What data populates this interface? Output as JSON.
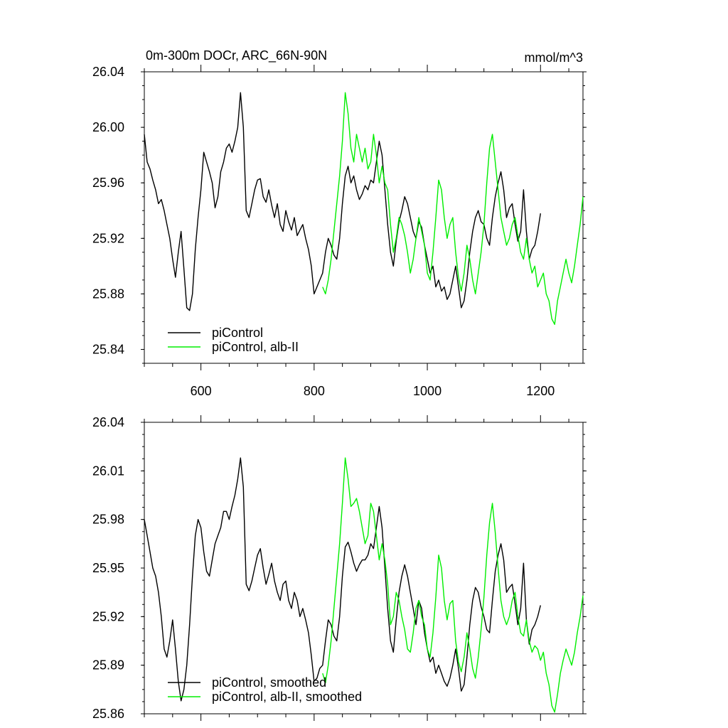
{
  "chart_data": [
    {
      "type": "line",
      "title": "0m-300m DOCr, ARC_66N-90N",
      "units": "mmol/m^3",
      "xlim": [
        500,
        1275
      ],
      "ylim": [
        25.83,
        26.04
      ],
      "yticks": [
        25.84,
        25.88,
        25.92,
        25.96,
        26.0,
        26.04
      ],
      "ytick_labels": [
        "25.84",
        "25.88",
        "25.92",
        "25.96",
        "26.00",
        "26.04"
      ],
      "xticks": [
        600,
        800,
        1000,
        1200
      ],
      "xtick_labels": [
        "600",
        "800",
        "1000",
        "1200"
      ],
      "legend_position": "bottom-left",
      "series": [
        {
          "name": "piControl",
          "color": "#000000",
          "x": [
            500,
            505,
            510,
            515,
            520,
            525,
            530,
            535,
            540,
            545,
            550,
            555,
            560,
            565,
            570,
            575,
            580,
            585,
            590,
            595,
            600,
            605,
            610,
            615,
            620,
            625,
            630,
            635,
            640,
            645,
            650,
            655,
            660,
            665,
            670,
            675,
            680,
            685,
            690,
            695,
            700,
            705,
            710,
            715,
            720,
            725,
            730,
            735,
            740,
            745,
            750,
            755,
            760,
            765,
            770,
            775,
            780,
            785,
            790,
            795,
            800,
            805,
            810,
            815,
            820,
            825,
            830,
            835,
            840,
            845,
            850,
            855,
            860,
            865,
            870,
            875,
            880,
            885,
            890,
            895,
            900,
            905,
            910,
            915,
            920,
            925,
            930,
            935,
            940,
            945,
            950,
            955,
            960,
            965,
            970,
            975,
            980,
            985,
            990,
            995,
            1000,
            1005,
            1010,
            1015,
            1020,
            1025,
            1030,
            1035,
            1040,
            1045,
            1050,
            1055,
            1060,
            1065,
            1070,
            1075,
            1080,
            1085,
            1090,
            1095,
            1100,
            1105,
            1110,
            1115,
            1120,
            1125,
            1130,
            1135,
            1140,
            1145,
            1150,
            1155,
            1160,
            1165,
            1170,
            1175,
            1180,
            1185,
            1190,
            1195,
            1200
          ],
          "values": [
            25.995,
            25.975,
            25.97,
            25.962,
            25.955,
            25.945,
            25.948,
            25.94,
            25.93,
            25.92,
            25.905,
            25.892,
            25.91,
            25.925,
            25.898,
            25.87,
            25.868,
            25.88,
            25.912,
            25.935,
            25.955,
            25.982,
            25.975,
            25.968,
            25.96,
            25.942,
            25.95,
            25.968,
            25.975,
            25.985,
            25.988,
            25.982,
            25.99,
            26.0,
            26.025,
            26.0,
            25.94,
            25.935,
            25.945,
            25.955,
            25.962,
            25.963,
            25.95,
            25.946,
            25.955,
            25.944,
            25.935,
            25.945,
            25.93,
            25.925,
            25.94,
            25.932,
            25.926,
            25.935,
            25.922,
            25.926,
            25.93,
            25.92,
            25.912,
            25.9,
            25.88,
            25.885,
            25.89,
            25.895,
            25.91,
            25.92,
            25.915,
            25.908,
            25.905,
            25.92,
            25.945,
            25.965,
            25.972,
            25.96,
            25.965,
            25.955,
            25.948,
            25.952,
            25.958,
            25.955,
            25.962,
            25.96,
            25.975,
            25.99,
            25.98,
            25.955,
            25.93,
            25.91,
            25.9,
            25.918,
            25.932,
            25.94,
            25.95,
            25.945,
            25.935,
            25.925,
            25.92,
            25.932,
            25.928,
            25.915,
            25.905,
            25.895,
            25.9,
            25.885,
            25.89,
            25.882,
            25.885,
            25.876,
            25.88,
            25.89,
            25.9,
            25.885,
            25.87,
            25.875,
            25.89,
            25.91,
            25.925,
            25.935,
            25.94,
            25.932,
            25.93,
            25.92,
            25.915,
            25.935,
            25.95,
            25.96,
            25.968,
            25.955,
            25.935,
            25.942,
            25.945,
            25.93,
            25.918,
            25.925,
            25.955,
            25.925,
            25.905,
            25.912,
            25.915,
            25.925,
            25.938
          ]
        },
        {
          "name": "piControl, alb-II",
          "color": "#00ee00",
          "x": [
            815,
            820,
            825,
            830,
            835,
            840,
            845,
            850,
            855,
            860,
            865,
            870,
            875,
            880,
            885,
            890,
            895,
            900,
            905,
            910,
            915,
            920,
            925,
            930,
            935,
            940,
            945,
            950,
            955,
            960,
            965,
            970,
            975,
            980,
            985,
            990,
            995,
            1000,
            1005,
            1010,
            1015,
            1020,
            1025,
            1030,
            1035,
            1040,
            1045,
            1050,
            1055,
            1060,
            1065,
            1070,
            1075,
            1080,
            1085,
            1090,
            1095,
            1100,
            1105,
            1110,
            1115,
            1120,
            1125,
            1130,
            1135,
            1140,
            1145,
            1150,
            1155,
            1160,
            1165,
            1170,
            1175,
            1180,
            1185,
            1190,
            1195,
            1200,
            1205,
            1210,
            1215,
            1220,
            1225,
            1230,
            1235,
            1240,
            1245,
            1250,
            1255,
            1260,
            1265,
            1270,
            1275
          ],
          "values": [
            25.885,
            25.88,
            25.89,
            25.905,
            25.925,
            25.945,
            25.965,
            25.99,
            26.025,
            26.01,
            25.985,
            25.975,
            25.995,
            25.985,
            25.975,
            25.985,
            25.97,
            25.975,
            25.995,
            25.98,
            25.96,
            25.972,
            25.96,
            25.955,
            25.93,
            25.91,
            25.92,
            25.935,
            25.93,
            25.922,
            25.91,
            25.895,
            25.905,
            25.92,
            25.935,
            25.925,
            25.915,
            25.895,
            25.89,
            25.91,
            25.935,
            25.962,
            25.955,
            25.935,
            25.92,
            25.93,
            25.935,
            25.91,
            25.892,
            25.882,
            25.895,
            25.915,
            25.905,
            25.89,
            25.88,
            25.895,
            25.91,
            25.93,
            25.96,
            25.985,
            25.995,
            25.975,
            25.955,
            25.935,
            25.925,
            25.915,
            25.92,
            25.93,
            25.935,
            25.922,
            25.91,
            25.905,
            25.92,
            25.905,
            25.895,
            25.9,
            25.885,
            25.89,
            25.895,
            25.88,
            25.875,
            25.862,
            25.858,
            25.875,
            25.885,
            25.895,
            25.905,
            25.895,
            25.888,
            25.9,
            25.915,
            25.93,
            25.95
          ]
        }
      ]
    },
    {
      "type": "line",
      "xlim": [
        500,
        1275
      ],
      "ylim": [
        25.86,
        26.04
      ],
      "yticks": [
        25.86,
        25.89,
        25.92,
        25.95,
        25.98,
        26.01,
        26.04
      ],
      "ytick_labels": [
        "25.86",
        "25.89",
        "25.92",
        "25.95",
        "25.98",
        "26.01",
        "26.04"
      ],
      "xticks": [
        600,
        800,
        1000,
        1200
      ],
      "legend_position": "bottom-left",
      "series": [
        {
          "name": "piControl, smoothed",
          "color": "#000000",
          "x": [
            500,
            505,
            510,
            515,
            520,
            525,
            530,
            535,
            540,
            545,
            550,
            555,
            560,
            565,
            570,
            575,
            580,
            585,
            590,
            595,
            600,
            605,
            610,
            615,
            620,
            625,
            630,
            635,
            640,
            645,
            650,
            655,
            660,
            665,
            670,
            675,
            680,
            685,
            690,
            695,
            700,
            705,
            710,
            715,
            720,
            725,
            730,
            735,
            740,
            745,
            750,
            755,
            760,
            765,
            770,
            775,
            780,
            785,
            790,
            795,
            800,
            805,
            810,
            815,
            820,
            825,
            830,
            835,
            840,
            845,
            850,
            855,
            860,
            865,
            870,
            875,
            880,
            885,
            890,
            895,
            900,
            905,
            910,
            915,
            920,
            925,
            930,
            935,
            940,
            945,
            950,
            955,
            960,
            965,
            970,
            975,
            980,
            985,
            990,
            995,
            1000,
            1005,
            1010,
            1015,
            1020,
            1025,
            1030,
            1035,
            1040,
            1045,
            1050,
            1055,
            1060,
            1065,
            1070,
            1075,
            1080,
            1085,
            1090,
            1095,
            1100,
            1105,
            1110,
            1115,
            1120,
            1125,
            1130,
            1135,
            1140,
            1145,
            1150,
            1155,
            1160,
            1165,
            1170,
            1175,
            1180,
            1185,
            1190,
            1195,
            1200
          ],
          "values": [
            25.98,
            25.97,
            25.96,
            25.95,
            25.945,
            25.935,
            25.92,
            25.9,
            25.895,
            25.905,
            25.918,
            25.9,
            25.88,
            25.868,
            25.875,
            25.89,
            25.915,
            25.945,
            25.97,
            25.98,
            25.975,
            25.96,
            25.948,
            25.945,
            25.955,
            25.965,
            25.97,
            25.975,
            25.985,
            25.985,
            25.98,
            25.988,
            25.995,
            26.005,
            26.018,
            26.0,
            25.94,
            25.936,
            25.942,
            25.95,
            25.958,
            25.962,
            25.95,
            25.94,
            25.946,
            25.953,
            25.942,
            25.935,
            25.93,
            25.94,
            25.942,
            25.93,
            25.925,
            25.935,
            25.93,
            25.92,
            25.925,
            25.918,
            25.91,
            25.896,
            25.88,
            25.882,
            25.888,
            25.89,
            25.905,
            25.918,
            25.915,
            25.908,
            25.905,
            25.92,
            25.945,
            25.963,
            25.966,
            25.96,
            25.953,
            25.948,
            25.952,
            25.955,
            25.955,
            25.958,
            25.965,
            25.962,
            25.975,
            25.988,
            25.975,
            25.95,
            25.925,
            25.905,
            25.898,
            25.918,
            25.935,
            25.945,
            25.952,
            25.945,
            25.935,
            25.925,
            25.915,
            25.93,
            25.925,
            25.91,
            25.9,
            25.892,
            25.895,
            25.885,
            25.89,
            25.885,
            25.88,
            25.877,
            25.882,
            25.89,
            25.9,
            25.888,
            25.874,
            25.878,
            25.895,
            25.915,
            25.93,
            25.938,
            25.935,
            25.926,
            25.92,
            25.912,
            25.91,
            25.93,
            25.948,
            25.958,
            25.965,
            25.955,
            25.935,
            25.938,
            25.94,
            25.928,
            25.915,
            25.925,
            25.953,
            25.918,
            25.903,
            25.912,
            25.915,
            25.92,
            25.927
          ]
        },
        {
          "name": "piControl, alb-II, smoothed",
          "color": "#00ee00",
          "x": [
            815,
            820,
            825,
            830,
            835,
            840,
            845,
            850,
            855,
            860,
            865,
            870,
            875,
            880,
            885,
            890,
            895,
            900,
            905,
            910,
            915,
            920,
            925,
            930,
            935,
            940,
            945,
            950,
            955,
            960,
            965,
            970,
            975,
            980,
            985,
            990,
            995,
            1000,
            1005,
            1010,
            1015,
            1020,
            1025,
            1030,
            1035,
            1040,
            1045,
            1050,
            1055,
            1060,
            1065,
            1070,
            1075,
            1080,
            1085,
            1090,
            1095,
            1100,
            1105,
            1110,
            1115,
            1120,
            1125,
            1130,
            1135,
            1140,
            1145,
            1150,
            1155,
            1160,
            1165,
            1170,
            1175,
            1180,
            1185,
            1190,
            1195,
            1200,
            1205,
            1210,
            1215,
            1220,
            1225,
            1230,
            1235,
            1240,
            1245,
            1250,
            1255,
            1260,
            1265,
            1270,
            1275
          ],
          "values": [
            25.885,
            25.879,
            25.89,
            25.905,
            25.925,
            25.945,
            25.965,
            25.99,
            26.018,
            26.005,
            25.988,
            25.99,
            25.993,
            25.985,
            25.975,
            25.965,
            25.97,
            25.99,
            25.985,
            25.97,
            25.955,
            25.965,
            25.955,
            25.94,
            25.915,
            25.92,
            25.935,
            25.93,
            25.92,
            25.912,
            25.9,
            25.898,
            25.91,
            25.925,
            25.93,
            25.92,
            25.915,
            25.9,
            25.895,
            25.91,
            25.932,
            25.958,
            25.95,
            25.93,
            25.918,
            25.928,
            25.93,
            25.905,
            25.892,
            25.886,
            25.895,
            25.91,
            25.9,
            25.888,
            25.882,
            25.895,
            25.912,
            25.932,
            25.958,
            25.978,
            25.99,
            25.972,
            25.95,
            25.93,
            25.92,
            25.915,
            25.92,
            25.93,
            25.935,
            25.92,
            25.91,
            25.908,
            25.918,
            25.905,
            25.898,
            25.902,
            25.9,
            25.893,
            25.898,
            25.885,
            25.878,
            25.865,
            25.861,
            25.872,
            25.885,
            25.893,
            25.9,
            25.895,
            25.89,
            25.898,
            25.91,
            25.92,
            25.933
          ]
        }
      ]
    }
  ]
}
